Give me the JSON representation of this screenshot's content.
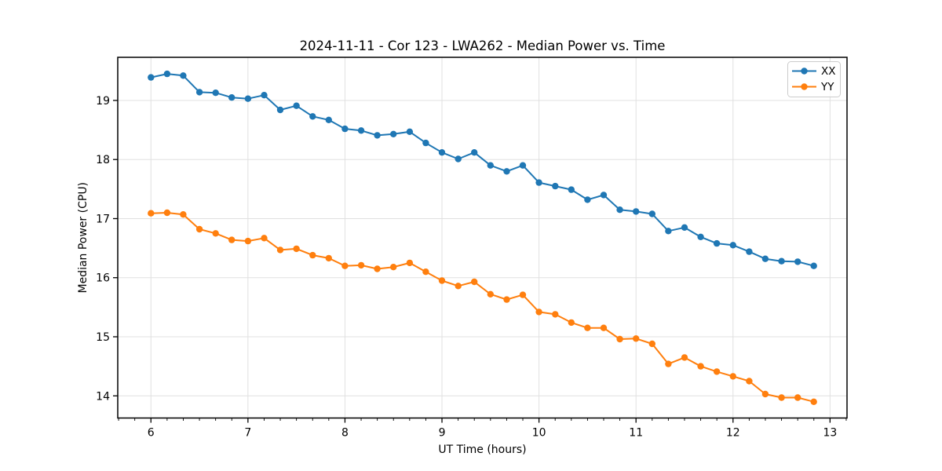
{
  "figure": {
    "title": "2024-11-11 - Cor 123 - LWA262 - Median Power vs. Time",
    "background_color": "#ffffff"
  },
  "chart_data": {
    "type": "line",
    "title": "2024-11-11 - Cor 123 - LWA262 - Median Power vs. Time",
    "xlabel": "UT Time (hours)",
    "ylabel": "Median Power (CPU)",
    "xlim": [
      5.658,
      13.175
    ],
    "ylim": [
      13.625,
      19.73
    ],
    "xticks": [
      6,
      7,
      8,
      9,
      10,
      11,
      12,
      13
    ],
    "yticks": [
      14,
      15,
      16,
      17,
      18,
      19
    ],
    "x_minor_divisions_per_unit": 6,
    "grid": true,
    "grid_color": "#e0e0e0",
    "legend": {
      "position": "upper right",
      "border_color": "#cccccc"
    },
    "marker_style": "circle",
    "x": [
      6.0,
      6.167,
      6.333,
      6.5,
      6.667,
      6.833,
      7.0,
      7.167,
      7.333,
      7.5,
      7.667,
      7.833,
      8.0,
      8.167,
      8.333,
      8.5,
      8.667,
      8.833,
      9.0,
      9.167,
      9.333,
      9.5,
      9.667,
      9.833,
      10.0,
      10.167,
      10.333,
      10.5,
      10.667,
      10.833,
      11.0,
      11.167,
      11.333,
      11.5,
      11.667,
      11.833,
      12.0,
      12.167,
      12.333,
      12.5,
      12.667,
      12.833
    ],
    "series": [
      {
        "name": "XX",
        "color": "#1f77b4",
        "values": [
          19.39,
          19.45,
          19.42,
          19.14,
          19.13,
          19.05,
          19.03,
          19.09,
          18.84,
          18.91,
          18.73,
          18.67,
          18.52,
          18.49,
          18.41,
          18.43,
          18.47,
          18.28,
          18.12,
          18.01,
          18.12,
          17.9,
          17.8,
          17.9,
          17.61,
          17.55,
          17.49,
          17.32,
          17.4,
          17.15,
          17.12,
          17.08,
          16.79,
          16.85,
          16.69,
          16.58,
          16.55,
          16.44,
          16.32,
          16.28,
          16.27,
          16.2
        ]
      },
      {
        "name": "YY",
        "color": "#ff7f0e",
        "values": [
          17.09,
          17.1,
          17.07,
          16.82,
          16.75,
          16.64,
          16.62,
          16.67,
          16.47,
          16.49,
          16.38,
          16.33,
          16.2,
          16.21,
          16.15,
          16.18,
          16.25,
          16.1,
          15.95,
          15.86,
          15.93,
          15.72,
          15.63,
          15.71,
          15.42,
          15.38,
          15.24,
          15.15,
          15.15,
          14.96,
          14.97,
          14.88,
          14.54,
          14.65,
          14.5,
          14.41,
          14.33,
          14.25,
          14.03,
          13.97,
          13.97,
          13.9
        ]
      }
    ]
  }
}
